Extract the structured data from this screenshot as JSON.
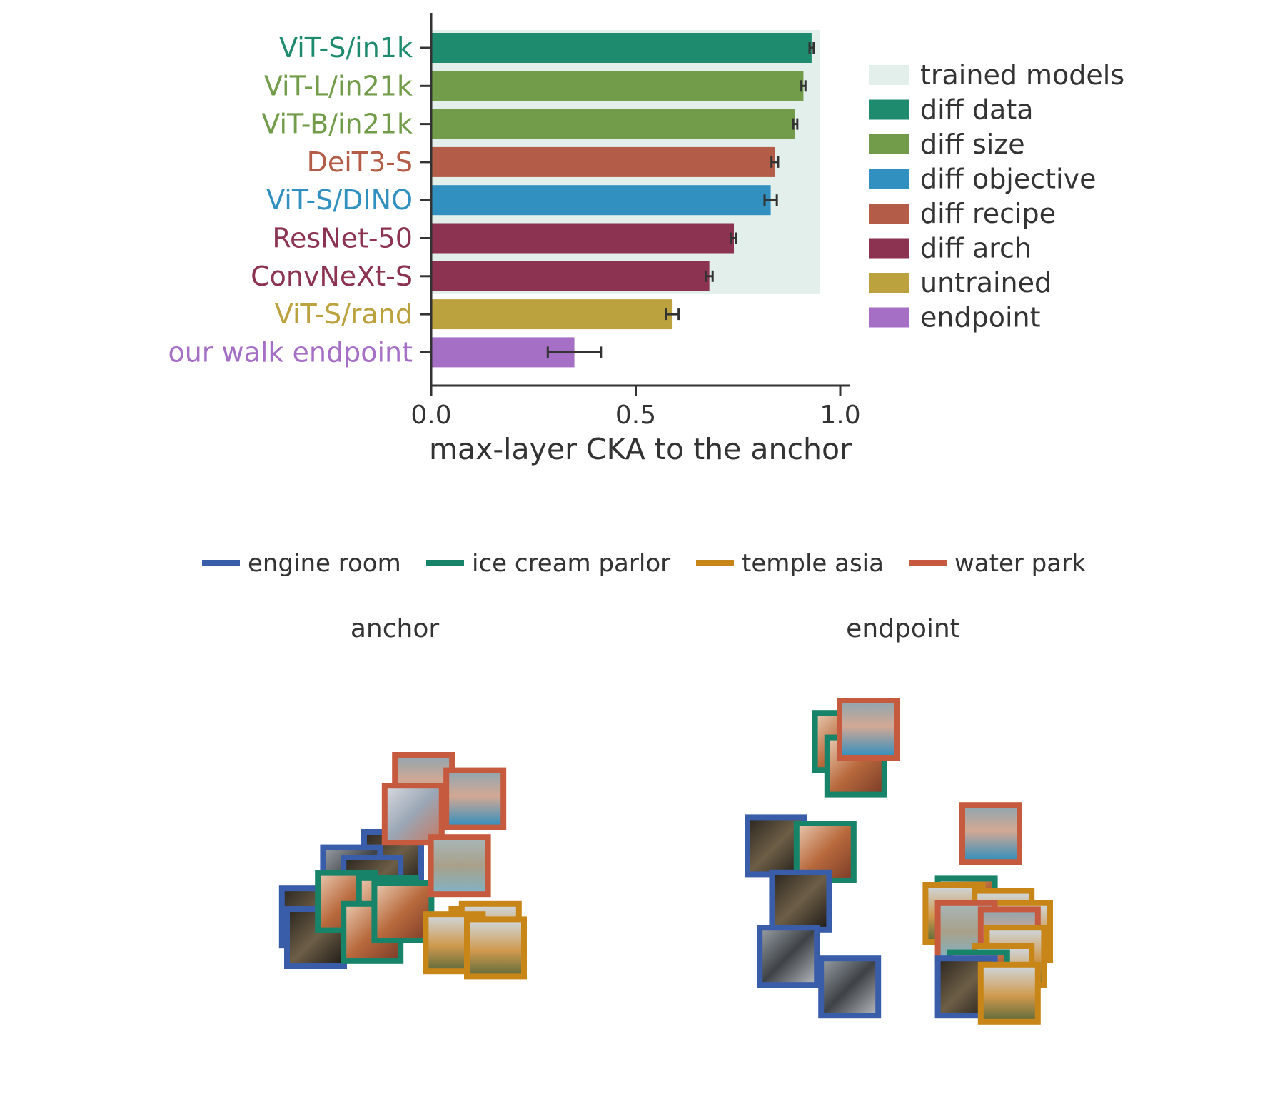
{
  "chart_data": [
    {
      "type": "bar",
      "orientation": "horizontal",
      "categories": [
        "ViT-S/in1k",
        "ViT-L/in21k",
        "ViT-B/in21k",
        "DeiT3-S",
        "ViT-S/DINO",
        "ResNet-50",
        "ConvNeXt-S",
        "ViT-S/rand",
        "our walk endpoint"
      ],
      "values": [
        0.93,
        0.91,
        0.89,
        0.84,
        0.83,
        0.74,
        0.68,
        0.59,
        0.35
      ],
      "errors": [
        0.005,
        0.005,
        0.005,
        0.008,
        0.015,
        0.006,
        0.008,
        0.015,
        0.065
      ],
      "groups": [
        "diff data",
        "diff size",
        "diff size",
        "diff recipe",
        "diff objective",
        "diff arch",
        "diff arch",
        "untrained",
        "endpoint"
      ],
      "trained_models_span": {
        "x": [
          0,
          0.95
        ],
        "categories": [
          "ViT-S/in1k",
          "ConvNeXt-S"
        ]
      },
      "xlabel": "max-layer CKA to the anchor",
      "xlim": [
        0,
        1.02
      ],
      "xticks": [
        0.0,
        0.5,
        1.0
      ],
      "xtick_labels": [
        "0.0",
        "0.5",
        "1.0"
      ],
      "grid": false,
      "legend": {
        "placement": "right",
        "entries": [
          {
            "label": "trained models",
            "color": "#e3efeb"
          },
          {
            "label": "diff data",
            "color": "#1e8a6e"
          },
          {
            "label": "diff size",
            "color": "#729c4a"
          },
          {
            "label": "diff objective",
            "color": "#3190c0"
          },
          {
            "label": "diff recipe",
            "color": "#b35c47"
          },
          {
            "label": "diff arch",
            "color": "#8b3350"
          },
          {
            "label": "untrained",
            "color": "#bca23e"
          },
          {
            "label": "endpoint",
            "color": "#a66fc6"
          }
        ]
      }
    },
    {
      "type": "scatter",
      "subtype": "image-thumbnail embedding",
      "legend": {
        "placement": "top",
        "entries": [
          {
            "label": "engine room",
            "color": "#3a5daa"
          },
          {
            "label": "ice cream parlor",
            "color": "#178469"
          },
          {
            "label": "temple asia",
            "color": "#c98618"
          },
          {
            "label": "water park",
            "color": "#c55a3e"
          }
        ]
      },
      "panels": [
        {
          "title": "anchor",
          "points": [
            {
              "class": "engine room",
              "scene": "dark",
              "x": 2.0,
              "y": 1.7
            },
            {
              "class": "engine room",
              "scene": "dark",
              "x": 0.4,
              "y": 0.6
            },
            {
              "class": "engine room",
              "scene": "dark",
              "x": 0.5,
              "y": 0.2
            },
            {
              "class": "engine room",
              "scene": "engine",
              "x": 1.2,
              "y": 1.4
            },
            {
              "class": "engine room",
              "scene": "dark",
              "x": 1.6,
              "y": 1.2
            },
            {
              "class": "ice cream parlor",
              "scene": "food",
              "x": 1.1,
              "y": 0.9
            },
            {
              "class": "ice cream parlor",
              "scene": "food",
              "x": 1.9,
              "y": 0.8
            },
            {
              "class": "ice cream parlor",
              "scene": "food",
              "x": 1.6,
              "y": 0.3
            },
            {
              "class": "ice cream parlor",
              "scene": "food",
              "x": 2.2,
              "y": 0.7
            },
            {
              "class": "water park",
              "scene": "pool",
              "x": 2.6,
              "y": 3.2
            },
            {
              "class": "water park",
              "scene": "pool",
              "x": 3.6,
              "y": 2.9
            },
            {
              "class": "water park",
              "scene": "slide",
              "x": 2.4,
              "y": 2.6
            },
            {
              "class": "water park",
              "scene": "fountain",
              "x": 3.3,
              "y": 1.6
            },
            {
              "class": "temple asia",
              "scene": "temple",
              "x": 3.7,
              "y": 0.2
            },
            {
              "class": "temple asia",
              "scene": "temple",
              "x": 3.9,
              "y": 0.3
            },
            {
              "class": "temple asia",
              "scene": "temple",
              "x": 3.2,
              "y": 0.1
            },
            {
              "class": "temple asia",
              "scene": "temple",
              "x": 4.0,
              "y": 0.0
            }
          ]
        },
        {
          "title": "endpoint",
          "points": [
            {
              "class": "ice cream parlor",
              "scene": "food",
              "x": 1.6,
              "y": 4.0
            },
            {
              "class": "ice cream parlor",
              "scene": "food",
              "x": 1.8,
              "y": 3.6
            },
            {
              "class": "water park",
              "scene": "pool",
              "x": 2.0,
              "y": 4.2
            },
            {
              "class": "engine room",
              "scene": "dark",
              "x": 0.5,
              "y": 2.3
            },
            {
              "class": "ice cream parlor",
              "scene": "food",
              "x": 1.3,
              "y": 2.2
            },
            {
              "class": "engine room",
              "scene": "dark",
              "x": 0.9,
              "y": 1.4
            },
            {
              "class": "water park",
              "scene": "pool",
              "x": 4.0,
              "y": 2.5
            },
            {
              "class": "engine room",
              "scene": "engine",
              "x": 0.7,
              "y": 0.5
            },
            {
              "class": "engine room",
              "scene": "engine",
              "x": 1.7,
              "y": 0.0
            },
            {
              "class": "ice cream parlor",
              "scene": "food",
              "x": 3.6,
              "y": 1.3
            },
            {
              "class": "temple asia",
              "scene": "temple",
              "x": 3.4,
              "y": 1.2
            },
            {
              "class": "temple asia",
              "scene": "temple",
              "x": 4.2,
              "y": 1.1
            },
            {
              "class": "temple asia",
              "scene": "temple",
              "x": 4.5,
              "y": 0.9
            },
            {
              "class": "water park",
              "scene": "fountain",
              "x": 3.6,
              "y": 0.9
            },
            {
              "class": "water park",
              "scene": "pool",
              "x": 4.3,
              "y": 0.8
            },
            {
              "class": "temple asia",
              "scene": "temple",
              "x": 4.4,
              "y": 0.5
            },
            {
              "class": "temple asia",
              "scene": "temple",
              "x": 4.2,
              "y": 0.2
            },
            {
              "class": "ice cream parlor",
              "scene": "food",
              "x": 3.8,
              "y": 0.1
            },
            {
              "class": "engine room",
              "scene": "dark",
              "x": 3.6,
              "y": 0.0
            },
            {
              "class": "temple asia",
              "scene": "temple",
              "x": 4.3,
              "y": -0.1
            }
          ]
        }
      ]
    }
  ]
}
